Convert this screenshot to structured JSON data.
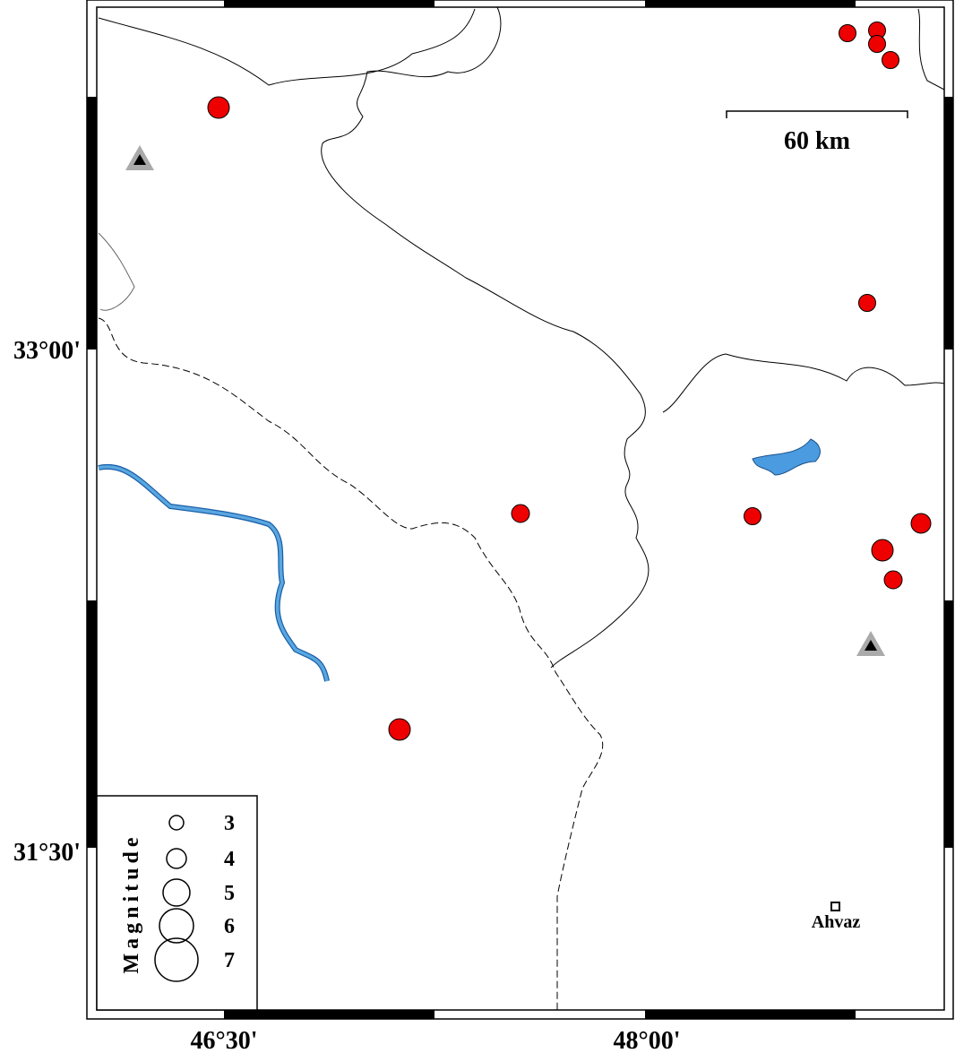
{
  "axes": {
    "x_ticks": [
      "46°30'",
      "48°00'"
    ],
    "y_ticks": [
      "33°00'",
      "31°30'"
    ]
  },
  "scale_bar": "60 km",
  "legend": {
    "title": "Magnitude",
    "entries": [
      "3",
      "4",
      "5",
      "6",
      "7"
    ]
  },
  "places": [
    "Ahvaz"
  ]
}
